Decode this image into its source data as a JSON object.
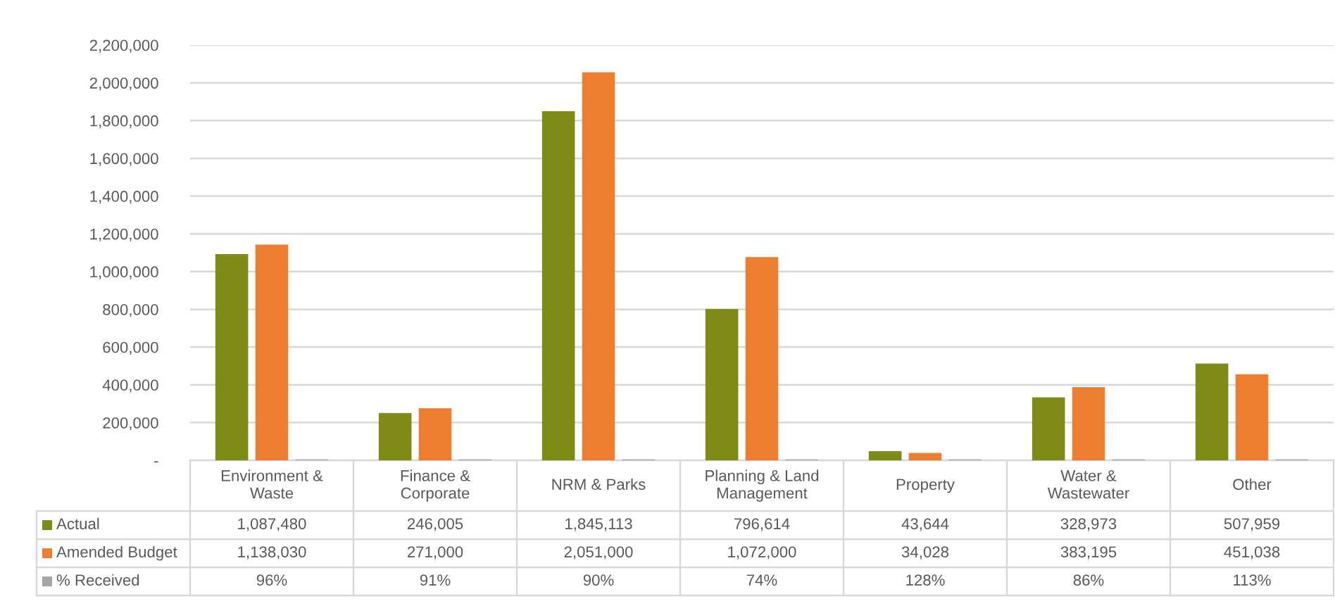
{
  "chart_data": {
    "type": "bar",
    "categories": [
      "Environment & Waste",
      "Finance & Corporate",
      "NRM & Parks",
      "Planning & Land Management",
      "Property",
      "Water & Wastewater",
      "Other"
    ],
    "series": [
      {
        "name": "Actual",
        "color": "#7f8b17",
        "values": [
          1087480,
          246005,
          1845113,
          796614,
          43644,
          328973,
          507959
        ],
        "value_labels": [
          "1,087,480",
          "246,005",
          "1,845,113",
          "796,614",
          "43,644",
          "328,973",
          "507,959"
        ]
      },
      {
        "name": "Amended Budget",
        "color": "#ed7d31",
        "values": [
          1138030,
          271000,
          2051000,
          1072000,
          34028,
          383195,
          451038
        ],
        "value_labels": [
          "1,138,030",
          "271,000",
          "2,051,000",
          "1,072,000",
          "34,028",
          "383,195",
          "451,038"
        ]
      },
      {
        "name": "% Received",
        "color": "#a5a5a5",
        "values": [
          0.96,
          0.91,
          0.9,
          0.74,
          1.28,
          0.86,
          1.13
        ],
        "value_labels": [
          "96%",
          "91%",
          "90%",
          "74%",
          "128%",
          "86%",
          "113%"
        ]
      }
    ],
    "ylim": [
      0,
      2200000
    ],
    "yticks": [
      {
        "value": 0,
        "label": "-"
      },
      {
        "value": 200000,
        "label": "200,000"
      },
      {
        "value": 400000,
        "label": "400,000"
      },
      {
        "value": 600000,
        "label": "600,000"
      },
      {
        "value": 800000,
        "label": "800,000"
      },
      {
        "value": 1000000,
        "label": "1,000,000"
      },
      {
        "value": 1200000,
        "label": "1,200,000"
      },
      {
        "value": 1400000,
        "label": "1,400,000"
      },
      {
        "value": 1600000,
        "label": "1,600,000"
      },
      {
        "value": 1800000,
        "label": "1,800,000"
      },
      {
        "value": 2000000,
        "label": "2,000,000"
      },
      {
        "value": 2200000,
        "label": "2,200,000"
      }
    ],
    "grid": "y",
    "legend": "bottom left"
  }
}
